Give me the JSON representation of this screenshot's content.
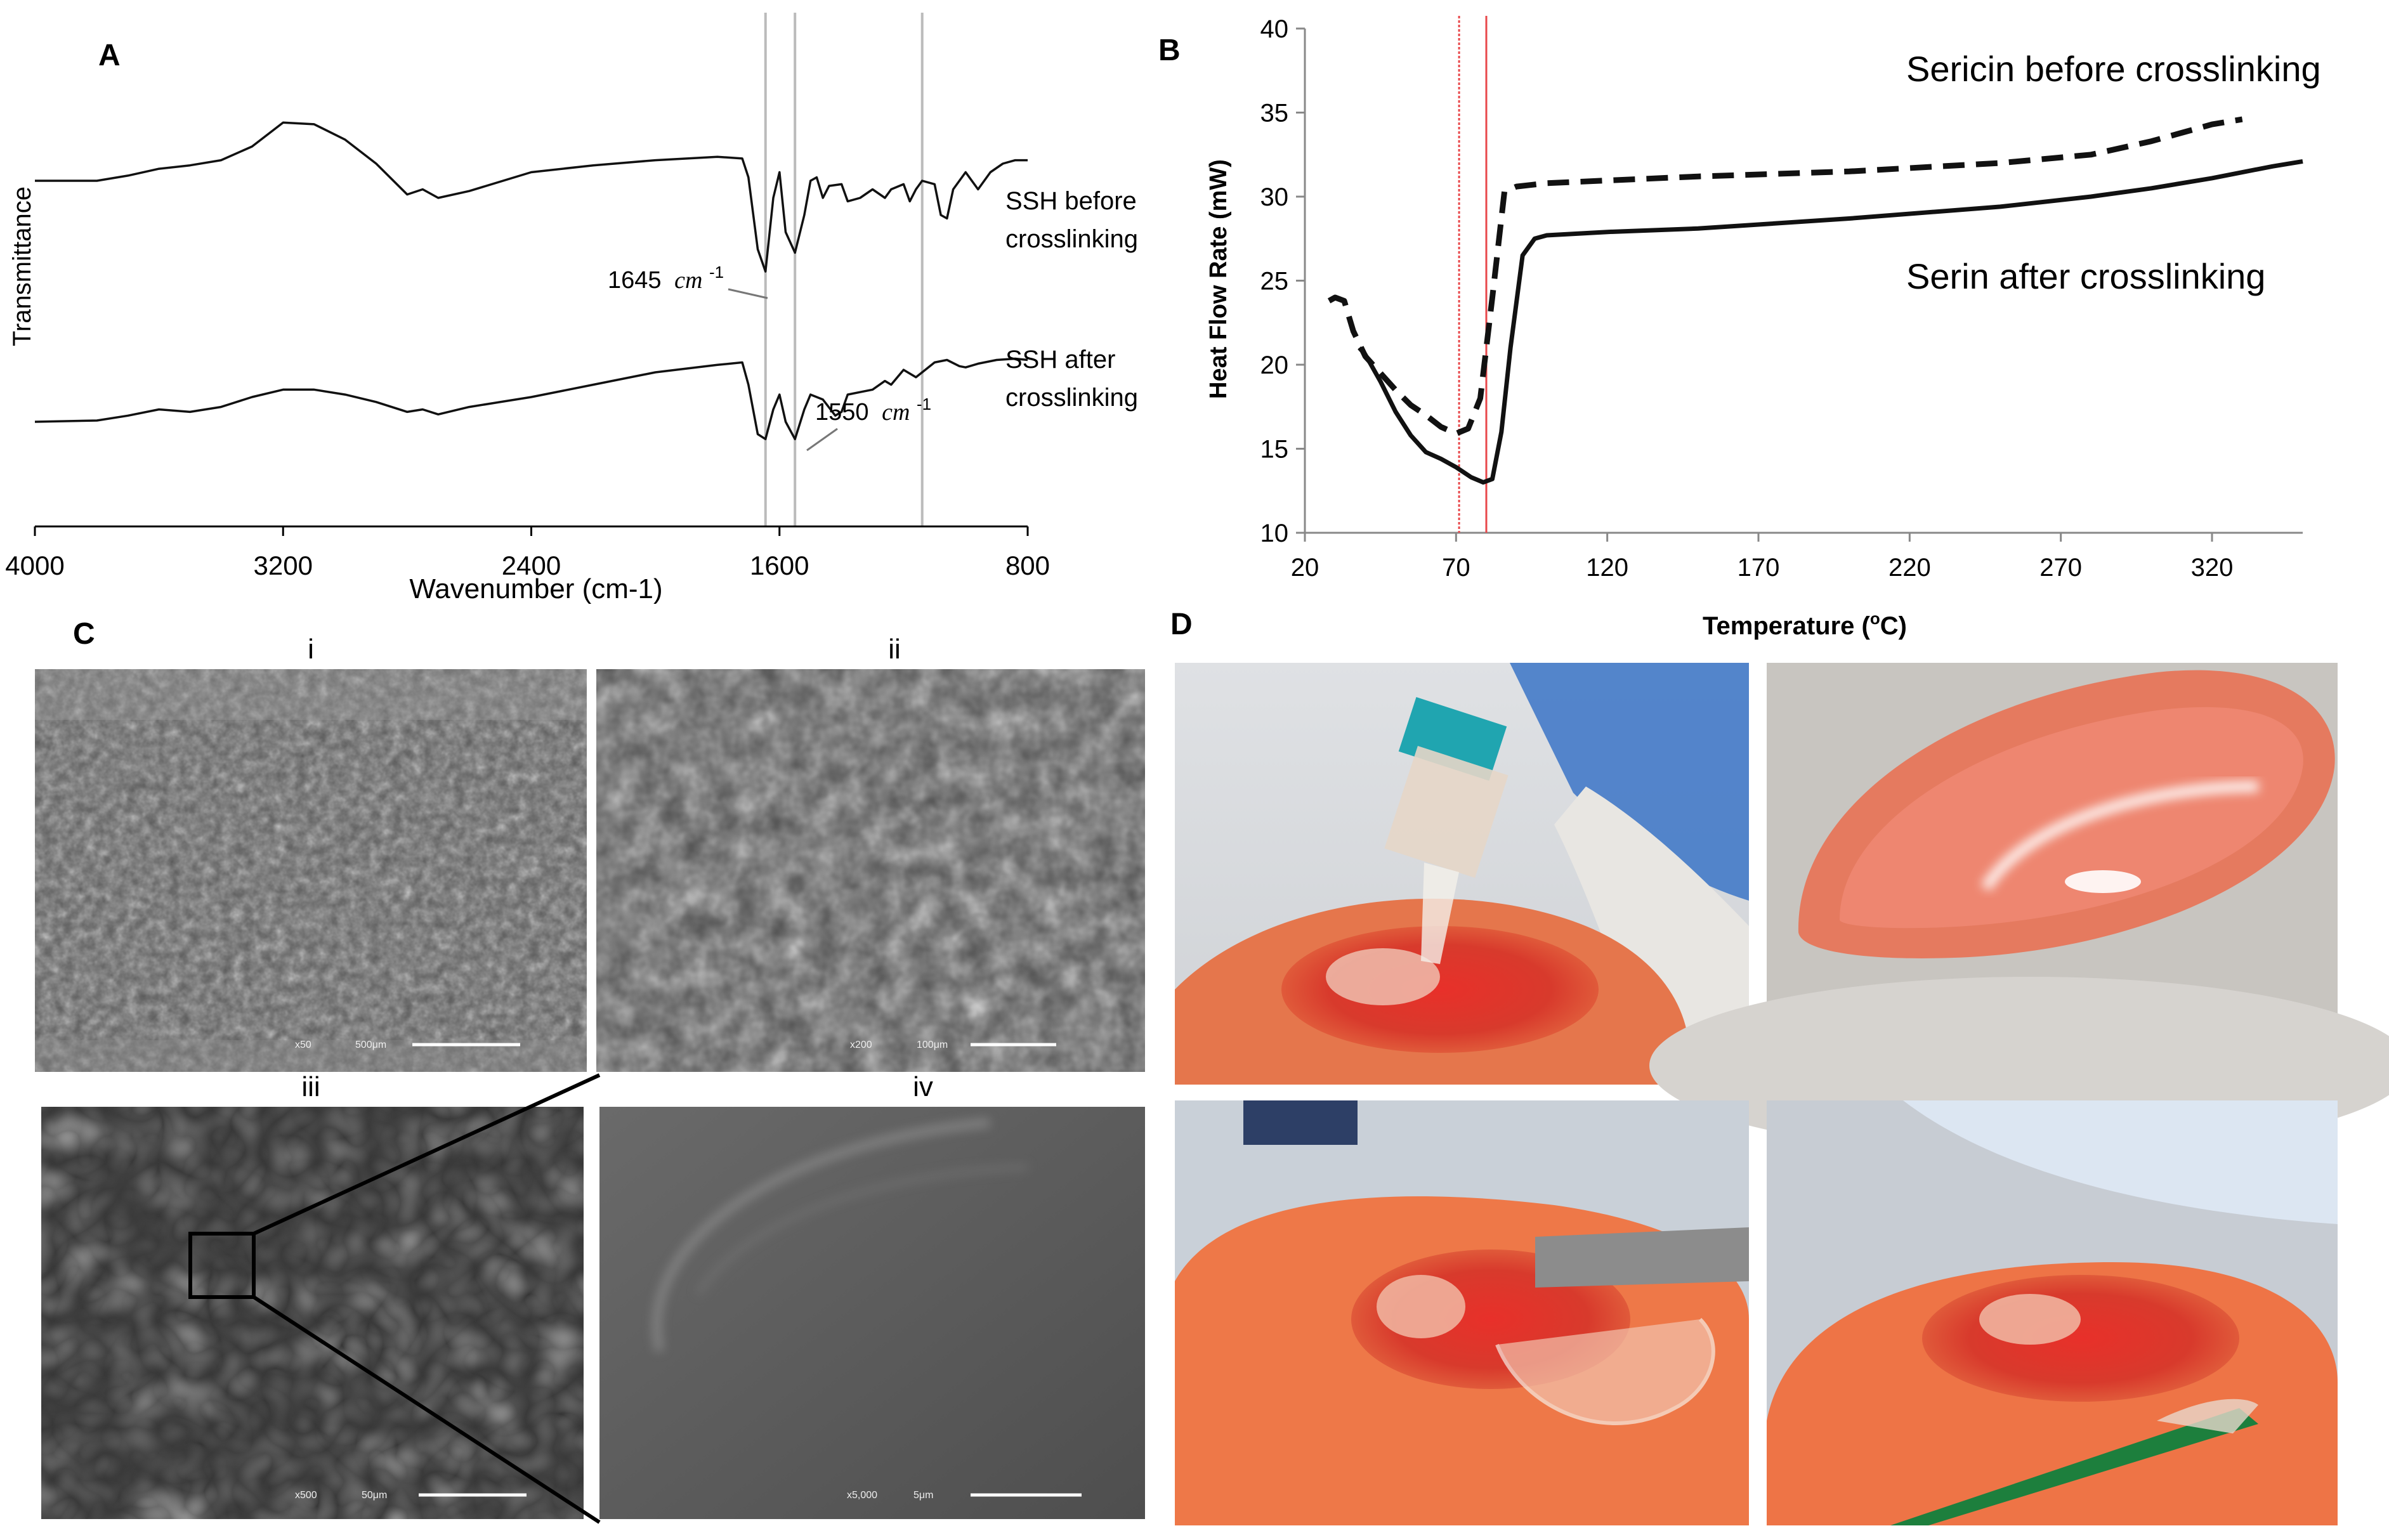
{
  "panels": {
    "A": "A",
    "B": "B",
    "C": "C",
    "D": "D"
  },
  "chart_data": [
    {
      "panel": "A",
      "type": "line",
      "xlabel": "Wavenumber (cm-1)",
      "ylabel": "Transmittance",
      "xlim": [
        4000,
        800
      ],
      "x_reversed": true,
      "ticks_x": [
        "4000",
        "3200",
        "2400",
        "1600",
        "800"
      ],
      "reference_lines_x": [
        1645,
        1550,
        1140
      ],
      "annotations": [
        {
          "text_main": "1645",
          "text_unit": "cm",
          "text_sup": "-1",
          "x": 1645
        },
        {
          "text_main": "1550",
          "text_unit": "cm",
          "text_sup": "-1",
          "x": 1550
        }
      ],
      "series": [
        {
          "name_line1": "SSH before",
          "name_line2": "crosslinking",
          "points": [
            [
              4000,
              0.0
            ],
            [
              3800,
              0.0
            ],
            [
              3700,
              0.03
            ],
            [
              3600,
              0.07
            ],
            [
              3500,
              0.09
            ],
            [
              3400,
              0.12
            ],
            [
              3300,
              0.2
            ],
            [
              3200,
              0.34
            ],
            [
              3100,
              0.33
            ],
            [
              3000,
              0.24
            ],
            [
              2900,
              0.1
            ],
            [
              2800,
              -0.08
            ],
            [
              2750,
              -0.05
            ],
            [
              2700,
              -0.1
            ],
            [
              2600,
              -0.06
            ],
            [
              2400,
              0.05
            ],
            [
              2200,
              0.09
            ],
            [
              2000,
              0.12
            ],
            [
              1800,
              0.14
            ],
            [
              1720,
              0.13
            ],
            [
              1700,
              0.02
            ],
            [
              1670,
              -0.4
            ],
            [
              1645,
              -0.53
            ],
            [
              1620,
              -0.1
            ],
            [
              1600,
              0.05
            ],
            [
              1580,
              -0.3
            ],
            [
              1550,
              -0.42
            ],
            [
              1520,
              -0.2
            ],
            [
              1500,
              0.0
            ],
            [
              1480,
              0.02
            ],
            [
              1460,
              -0.1
            ],
            [
              1440,
              -0.03
            ],
            [
              1400,
              -0.02
            ],
            [
              1380,
              -0.12
            ],
            [
              1340,
              -0.1
            ],
            [
              1300,
              -0.05
            ],
            [
              1260,
              -0.1
            ],
            [
              1240,
              -0.05
            ],
            [
              1200,
              -0.02
            ],
            [
              1180,
              -0.12
            ],
            [
              1160,
              -0.05
            ],
            [
              1140,
              0.0
            ],
            [
              1100,
              -0.02
            ],
            [
              1080,
              -0.2
            ],
            [
              1060,
              -0.22
            ],
            [
              1040,
              -0.05
            ],
            [
              1000,
              0.05
            ],
            [
              960,
              -0.05
            ],
            [
              920,
              0.05
            ],
            [
              880,
              0.1
            ],
            [
              840,
              0.12
            ],
            [
              800,
              0.12
            ]
          ]
        },
        {
          "name_line1": "SSH after",
          "name_line2": "crosslinking",
          "points": [
            [
              4000,
              0.0
            ],
            [
              3800,
              0.01
            ],
            [
              3700,
              0.05
            ],
            [
              3600,
              0.1
            ],
            [
              3500,
              0.08
            ],
            [
              3400,
              0.12
            ],
            [
              3300,
              0.2
            ],
            [
              3200,
              0.26
            ],
            [
              3100,
              0.26
            ],
            [
              3000,
              0.22
            ],
            [
              2900,
              0.16
            ],
            [
              2800,
              0.08
            ],
            [
              2750,
              0.1
            ],
            [
              2700,
              0.06
            ],
            [
              2600,
              0.12
            ],
            [
              2400,
              0.2
            ],
            [
              2200,
              0.3
            ],
            [
              2000,
              0.4
            ],
            [
              1800,
              0.46
            ],
            [
              1720,
              0.48
            ],
            [
              1700,
              0.3
            ],
            [
              1670,
              -0.1
            ],
            [
              1645,
              -0.14
            ],
            [
              1620,
              0.1
            ],
            [
              1600,
              0.22
            ],
            [
              1580,
              0.0
            ],
            [
              1550,
              -0.14
            ],
            [
              1520,
              0.1
            ],
            [
              1500,
              0.22
            ],
            [
              1460,
              0.18
            ],
            [
              1420,
              0.05
            ],
            [
              1400,
              0.08
            ],
            [
              1380,
              0.22
            ],
            [
              1340,
              0.24
            ],
            [
              1300,
              0.26
            ],
            [
              1260,
              0.33
            ],
            [
              1240,
              0.3
            ],
            [
              1200,
              0.42
            ],
            [
              1160,
              0.36
            ],
            [
              1140,
              0.4
            ],
            [
              1100,
              0.48
            ],
            [
              1060,
              0.5
            ],
            [
              1020,
              0.45
            ],
            [
              1000,
              0.44
            ],
            [
              960,
              0.47
            ],
            [
              900,
              0.5
            ],
            [
              840,
              0.51
            ],
            [
              800,
              0.5
            ]
          ]
        }
      ]
    },
    {
      "panel": "B",
      "type": "line",
      "xlabel_main": "Temperature (",
      "xlabel_sup": "o",
      "xlabel_end": "C)",
      "ylabel": "Heat Flow Rate (mW)",
      "xlim": [
        20,
        350
      ],
      "ylim": [
        10,
        40
      ],
      "ticks_x": [
        "20",
        "70",
        "120",
        "170",
        "220",
        "270",
        "320"
      ],
      "ticks_y": [
        "10",
        "15",
        "20",
        "25",
        "30",
        "35",
        "40"
      ],
      "reference_lines_x": [
        71,
        80
      ],
      "series": [
        {
          "name": "Sericin before crosslinking",
          "style": "dashed",
          "points": [
            [
              28,
              23.8
            ],
            [
              30,
              24
            ],
            [
              33,
              23.8
            ],
            [
              36,
              22
            ],
            [
              40,
              20.5
            ],
            [
              45,
              19.5
            ],
            [
              50,
              18.5
            ],
            [
              55,
              17.6
            ],
            [
              60,
              17
            ],
            [
              65,
              16.3
            ],
            [
              70,
              15.9
            ],
            [
              74,
              16.2
            ],
            [
              78,
              18
            ],
            [
              82,
              24
            ],
            [
              86,
              30.3
            ],
            [
              90,
              30.6
            ],
            [
              100,
              30.8
            ],
            [
              150,
              31.2
            ],
            [
              200,
              31.5
            ],
            [
              250,
              32
            ],
            [
              280,
              32.5
            ],
            [
              300,
              33.3
            ],
            [
              320,
              34.3
            ],
            [
              330,
              34.6
            ]
          ]
        },
        {
          "name": "Serin after crosslinking",
          "style": "solid",
          "points": [
            [
              38,
              21
            ],
            [
              40,
              20.6
            ],
            [
              45,
              19
            ],
            [
              50,
              17.2
            ],
            [
              55,
              15.8
            ],
            [
              60,
              14.8
            ],
            [
              65,
              14.4
            ],
            [
              70,
              13.9
            ],
            [
              75,
              13.3
            ],
            [
              79,
              13
            ],
            [
              82,
              13.2
            ],
            [
              85,
              16
            ],
            [
              88,
              21
            ],
            [
              92,
              26.5
            ],
            [
              96,
              27.5
            ],
            [
              100,
              27.7
            ],
            [
              120,
              27.9
            ],
            [
              150,
              28.1
            ],
            [
              200,
              28.7
            ],
            [
              250,
              29.4
            ],
            [
              280,
              30
            ],
            [
              300,
              30.5
            ],
            [
              320,
              31.1
            ],
            [
              340,
              31.8
            ],
            [
              350,
              32.1
            ]
          ]
        }
      ]
    }
  ],
  "panel_c": {
    "labels": [
      "i",
      "ii",
      "iii",
      "iv"
    ],
    "scale_bars": [
      {
        "mag": "x50",
        "length": "500μm"
      },
      {
        "mag": "x200",
        "length": "100μm"
      },
      {
        "mag": "x500",
        "length": "50μm"
      },
      {
        "mag": "x5,000",
        "length": "5μm"
      }
    ]
  },
  "colors": {
    "reference_gray": "#bbbbbb",
    "reference_red": "#e8484b",
    "line": "#111111",
    "sem_gray": "#5a5a5a",
    "gel": "#e96c4e",
    "wound": "#d8322a"
  }
}
